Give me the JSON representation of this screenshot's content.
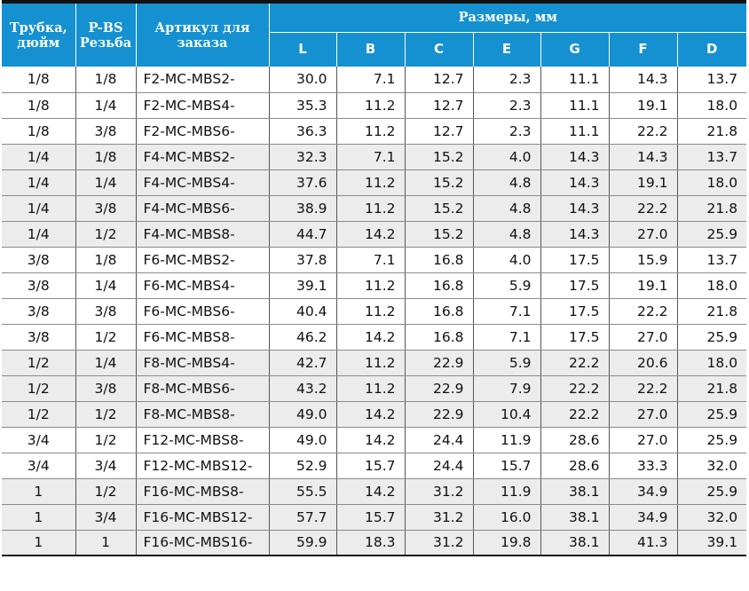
{
  "headers": {
    "tube": "Трубка, дюйм",
    "thread": "P-BS Резьба",
    "article": "Артикул для заказа",
    "sizes": "Размеры, мм",
    "dims": [
      "L",
      "B",
      "C",
      "E",
      "G",
      "F",
      "D"
    ]
  },
  "rows": [
    {
      "tube": "1/8",
      "thread": "1/8",
      "article": "F2-MC-MBS2-",
      "L": "30.0",
      "B": "7.1",
      "C": "12.7",
      "E": "2.3",
      "G": "11.1",
      "F": "14.3",
      "D": "13.7"
    },
    {
      "tube": "1/8",
      "thread": "1/4",
      "article": "F2-MC-MBS4-",
      "L": "35.3",
      "B": "11.2",
      "C": "12.7",
      "E": "2.3",
      "G": "11.1",
      "F": "19.1",
      "D": "18.0"
    },
    {
      "tube": "1/8",
      "thread": "3/8",
      "article": "F2-MC-MBS6-",
      "L": "36.3",
      "B": "11.2",
      "C": "12.7",
      "E": "2.3",
      "G": "11.1",
      "F": "22.2",
      "D": "21.8"
    },
    {
      "tube": "1/4",
      "thread": "1/8",
      "article": "F4-MC-MBS2-",
      "L": "32.3",
      "B": "7.1",
      "C": "15.2",
      "E": "4.0",
      "G": "14.3",
      "F": "14.3",
      "D": "13.7"
    },
    {
      "tube": "1/4",
      "thread": "1/4",
      "article": "F4-MC-MBS4-",
      "L": "37.6",
      "B": "11.2",
      "C": "15.2",
      "E": "4.8",
      "G": "14.3",
      "F": "19.1",
      "D": "18.0"
    },
    {
      "tube": "1/4",
      "thread": "3/8",
      "article": "F4-MC-MBS6-",
      "L": "38.9",
      "B": "11.2",
      "C": "15.2",
      "E": "4.8",
      "G": "14.3",
      "F": "22.2",
      "D": "21.8"
    },
    {
      "tube": "1/4",
      "thread": "1/2",
      "article": "F4-MC-MBS8-",
      "L": "44.7",
      "B": "14.2",
      "C": "15.2",
      "E": "4.8",
      "G": "14.3",
      "F": "27.0",
      "D": "25.9"
    },
    {
      "tube": "3/8",
      "thread": "1/8",
      "article": "F6-MC-MBS2-",
      "L": "37.8",
      "B": "7.1",
      "C": "16.8",
      "E": "4.0",
      "G": "17.5",
      "F": "15.9",
      "D": "13.7"
    },
    {
      "tube": "3/8",
      "thread": "1/4",
      "article": "F6-MC-MBS4-",
      "L": "39.1",
      "B": "11.2",
      "C": "16.8",
      "E": "5.9",
      "G": "17.5",
      "F": "19.1",
      "D": "18.0"
    },
    {
      "tube": "3/8",
      "thread": "3/8",
      "article": "F6-MC-MBS6-",
      "L": "40.4",
      "B": "11.2",
      "C": "16.8",
      "E": "7.1",
      "G": "17.5",
      "F": "22.2",
      "D": "21.8"
    },
    {
      "tube": "3/8",
      "thread": "1/2",
      "article": "F6-MC-MBS8-",
      "L": "46.2",
      "B": "14.2",
      "C": "16.8",
      "E": "7.1",
      "G": "17.5",
      "F": "27.0",
      "D": "25.9"
    },
    {
      "tube": "1/2",
      "thread": "1/4",
      "article": "F8-MC-MBS4-",
      "L": "42.7",
      "B": "11.2",
      "C": "22.9",
      "E": "5.9",
      "G": "22.2",
      "F": "20.6",
      "D": "18.0"
    },
    {
      "tube": "1/2",
      "thread": "3/8",
      "article": "F8-MC-MBS6-",
      "L": "43.2",
      "B": "11.2",
      "C": "22.9",
      "E": "7.9",
      "G": "22.2",
      "F": "22.2",
      "D": "21.8"
    },
    {
      "tube": "1/2",
      "thread": "1/2",
      "article": "F8-MC-MBS8-",
      "L": "49.0",
      "B": "14.2",
      "C": "22.9",
      "E": "10.4",
      "G": "22.2",
      "F": "27.0",
      "D": "25.9"
    },
    {
      "tube": "3/4",
      "thread": "1/2",
      "article": "F12-MC-MBS8-",
      "L": "49.0",
      "B": "14.2",
      "C": "24.4",
      "E": "11.9",
      "G": "28.6",
      "F": "27.0",
      "D": "25.9"
    },
    {
      "tube": "3/4",
      "thread": "3/4",
      "article": "F12-MC-MBS12-",
      "L": "52.9",
      "B": "15.7",
      "C": "24.4",
      "E": "15.7",
      "G": "28.6",
      "F": "33.3",
      "D": "32.0"
    },
    {
      "tube": "1",
      "thread": "1/2",
      "article": "F16-MC-MBS8-",
      "L": "55.5",
      "B": "14.2",
      "C": "31.2",
      "E": "11.9",
      "G": "38.1",
      "F": "34.9",
      "D": "25.9"
    },
    {
      "tube": "1",
      "thread": "3/4",
      "article": "F16-MC-MBS12-",
      "L": "57.7",
      "B": "15.7",
      "C": "31.2",
      "E": "16.0",
      "G": "38.1",
      "F": "34.9",
      "D": "32.0"
    },
    {
      "tube": "1",
      "thread": "1",
      "article": "F16-MC-MBS16-",
      "L": "59.9",
      "B": "18.3",
      "C": "31.2",
      "E": "19.8",
      "G": "38.1",
      "F": "41.3",
      "D": "39.1"
    }
  ],
  "shaded_rows": [
    3,
    4,
    5,
    6,
    11,
    12,
    13,
    16,
    17,
    18
  ],
  "colors": {
    "header_bg": "#1591d1",
    "header_text": "#ffffff",
    "shade": "#ececec"
  }
}
